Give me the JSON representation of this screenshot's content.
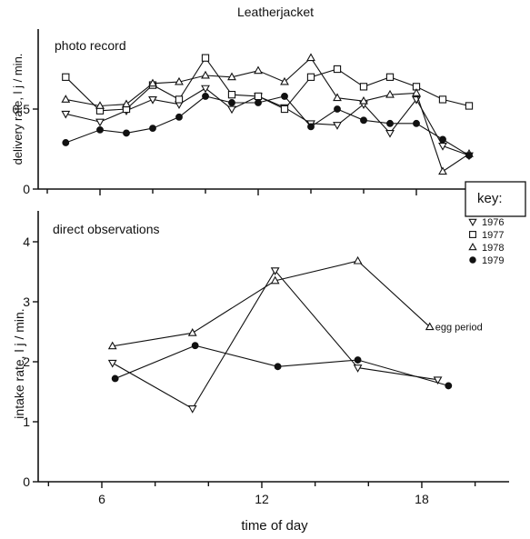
{
  "figure_title": "Leatherjacket",
  "chart_data": [
    {
      "type": "line",
      "panel_label": "photo record",
      "ylabel": "delivery rate, l j / min.",
      "xlabel": "",
      "xlim": [
        4,
        22
      ],
      "ylim": [
        0,
        1.0
      ],
      "x_ticks": [
        6,
        12,
        18
      ],
      "x_tick_labels": [
        "",
        "",
        ""
      ],
      "y_ticks": [
        0,
        0.5
      ],
      "y_tick_labels": [
        "0",
        "0.5"
      ],
      "series": [
        {
          "name": "1976",
          "marker": "triangle-down",
          "x": [
            4.7,
            6,
            7,
            8,
            9,
            10,
            11,
            12,
            13,
            14,
            15,
            16,
            17,
            18,
            19,
            20
          ],
          "y": [
            0.47,
            0.42,
            0.49,
            0.56,
            0.53,
            0.63,
            0.5,
            0.58,
            0.51,
            0.41,
            0.4,
            0.53,
            0.35,
            0.56,
            0.27,
            0.21
          ]
        },
        {
          "name": "1977",
          "marker": "square",
          "x": [
            4.7,
            6,
            7,
            8,
            9,
            10,
            11,
            12,
            13,
            14,
            15,
            16,
            17,
            18,
            19,
            20
          ],
          "y": [
            0.7,
            0.49,
            0.5,
            0.65,
            0.56,
            0.82,
            0.59,
            0.58,
            0.5,
            0.7,
            0.75,
            0.64,
            0.7,
            0.64,
            0.56,
            0.52
          ]
        },
        {
          "name": "1978",
          "marker": "triangle-up",
          "x": [
            4.7,
            6,
            7,
            8,
            9,
            10,
            11,
            12,
            13,
            14,
            15,
            16,
            17,
            18,
            19,
            20
          ],
          "y": [
            0.56,
            0.52,
            0.53,
            0.66,
            0.67,
            0.71,
            0.7,
            0.74,
            0.67,
            0.82,
            0.57,
            0.55,
            0.59,
            0.6,
            0.11,
            0.22
          ]
        },
        {
          "name": "1979",
          "marker": "circle-filled",
          "x": [
            4.7,
            6,
            7,
            8,
            9,
            10,
            11,
            12,
            13,
            14,
            15,
            16,
            17,
            18,
            19,
            20
          ],
          "y": [
            0.29,
            0.37,
            0.35,
            0.38,
            0.45,
            0.58,
            0.54,
            0.54,
            0.58,
            0.39,
            0.5,
            0.43,
            0.41,
            0.41,
            0.31,
            0.21
          ]
        }
      ]
    },
    {
      "type": "line",
      "panel_label": "direct observations",
      "ylabel": "intake rate, l j / min.",
      "xlabel": "time of day",
      "xlim": [
        4,
        22
      ],
      "ylim": [
        0,
        5
      ],
      "x_ticks": [
        6,
        12,
        18
      ],
      "x_tick_labels": [
        "6",
        "12",
        "18"
      ],
      "y_ticks": [
        0,
        1,
        2,
        3,
        4
      ],
      "y_tick_labels": [
        "0",
        "1",
        "2",
        "3",
        "4"
      ],
      "series": [
        {
          "name": "1976",
          "marker": "triangle-down",
          "x": [
            6.4,
            9.4,
            12.5,
            15.6,
            18.6
          ],
          "y": [
            1.98,
            1.22,
            3.52,
            1.9,
            1.7
          ]
        },
        {
          "name": "1978",
          "marker": "triangle-up",
          "x": [
            6.4,
            9.4,
            12.5,
            15.6,
            18.3
          ],
          "y": [
            2.26,
            2.48,
            3.35,
            3.68,
            2.58
          ]
        },
        {
          "name": "1979",
          "marker": "circle-filled",
          "x": [
            6.5,
            9.5,
            12.6,
            15.6,
            19.0
          ],
          "y": [
            1.72,
            2.27,
            1.92,
            2.03,
            1.6
          ]
        }
      ],
      "annotations": [
        {
          "text": "egg period",
          "x": 18.3,
          "y": 2.58
        }
      ]
    }
  ],
  "legend": {
    "title": "key:",
    "placement": "right",
    "entries": [
      {
        "label": "1976",
        "marker": "triangle-down"
      },
      {
        "label": "1977",
        "marker": "square"
      },
      {
        "label": "1978",
        "marker": "triangle-up"
      },
      {
        "label": "1979",
        "marker": "circle-filled"
      }
    ]
  }
}
